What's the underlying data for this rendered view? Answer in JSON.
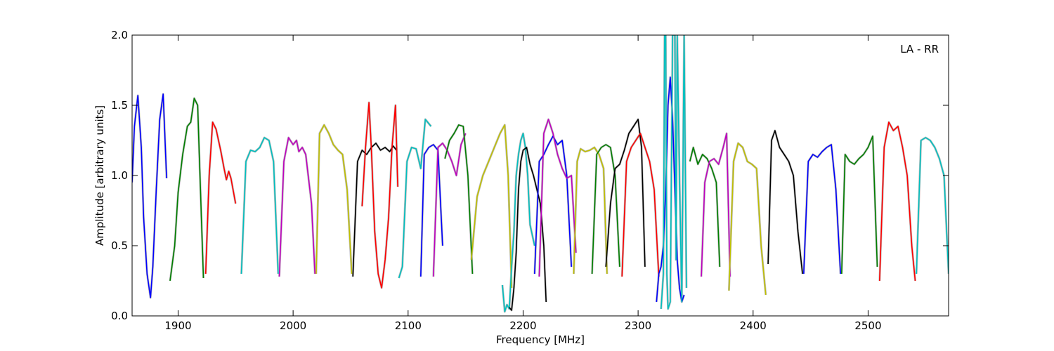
{
  "chart_data": {
    "type": "line",
    "title": "",
    "xlabel": "Frequency [MHz]",
    "ylabel": "Amplitude [arbitrary units]",
    "xlim": [
      1860,
      2570
    ],
    "ylim": [
      0.0,
      2.0
    ],
    "x_ticks": [
      1900,
      2000,
      2100,
      2200,
      2300,
      2400,
      2500
    ],
    "x_tick_labels": [
      "1900",
      "2000",
      "2100",
      "2200",
      "2300",
      "2400",
      "2500"
    ],
    "y_ticks": [
      0.0,
      0.5,
      1.0,
      1.5,
      2.0
    ],
    "y_tick_labels": [
      "0.0",
      "0.5",
      "1.0",
      "1.5",
      "2.0"
    ],
    "grid": false,
    "annotation": "LA - RR",
    "annotation_position": "top-right",
    "background_series_color": "#bfbfbf",
    "series": [
      {
        "color": "#0000ff",
        "x": [
          1860,
          1862,
          1865,
          1868,
          1870,
          1873,
          1876,
          1878,
          1881,
          1884,
          1887,
          1890
        ],
        "y": [
          0.95,
          1.35,
          1.57,
          1.2,
          0.7,
          0.3,
          0.13,
          0.35,
          0.9,
          1.4,
          1.58,
          0.98
        ]
      },
      {
        "color": "#007f00",
        "x": [
          1893,
          1897,
          1900,
          1904,
          1908,
          1911,
          1914,
          1917,
          1919,
          1922
        ],
        "y": [
          0.25,
          0.5,
          0.88,
          1.15,
          1.35,
          1.38,
          1.55,
          1.5,
          1.0,
          0.27
        ]
      },
      {
        "color": "#ff0000",
        "x": [
          1924,
          1927,
          1930,
          1933,
          1937,
          1940,
          1942,
          1944,
          1946,
          1950
        ],
        "y": [
          0.3,
          1.0,
          1.38,
          1.33,
          1.18,
          1.05,
          0.97,
          1.03,
          0.98,
          0.8
        ]
      },
      {
        "color": "#00bfbf",
        "x": [
          1955,
          1959,
          1963,
          1967,
          1971,
          1975,
          1979,
          1983,
          1987
        ],
        "y": [
          0.3,
          1.1,
          1.18,
          1.17,
          1.2,
          1.27,
          1.25,
          1.1,
          0.3
        ]
      },
      {
        "color": "#bf00bf",
        "x": [
          1988,
          1992,
          1996,
          2000,
          2003,
          2005,
          2008,
          2011,
          2016,
          2019
        ],
        "y": [
          0.28,
          1.1,
          1.27,
          1.22,
          1.25,
          1.17,
          1.2,
          1.15,
          0.8,
          0.3
        ]
      },
      {
        "color": "#bfbf00",
        "x": [
          2020,
          2023,
          2027,
          2031,
          2035,
          2039,
          2043,
          2047,
          2051
        ],
        "y": [
          0.3,
          1.3,
          1.36,
          1.3,
          1.22,
          1.18,
          1.15,
          0.9,
          0.3
        ]
      },
      {
        "color": "#000000",
        "x": [
          2052,
          2056,
          2060,
          2064,
          2068,
          2072,
          2076,
          2080,
          2084,
          2087,
          2090
        ],
        "y": [
          0.28,
          1.1,
          1.18,
          1.15,
          1.2,
          1.23,
          1.18,
          1.2,
          1.17,
          1.21,
          1.18
        ]
      },
      {
        "color": "#ff0000",
        "x": [
          2060,
          2063,
          2066,
          2068,
          2071,
          2074,
          2077,
          2080,
          2083,
          2086,
          2089,
          2091
        ],
        "y": [
          0.78,
          1.2,
          1.52,
          1.2,
          0.6,
          0.3,
          0.2,
          0.4,
          0.7,
          1.2,
          1.5,
          0.92
        ]
      },
      {
        "color": "#00bfbf",
        "x": [
          2092,
          2095,
          2099,
          2103,
          2107,
          2111,
          2115,
          2120
        ],
        "y": [
          0.27,
          0.35,
          1.1,
          1.2,
          1.19,
          1.05,
          1.4,
          1.35
        ]
      },
      {
        "color": "#0000ff",
        "x": [
          2111,
          2114,
          2118,
          2122,
          2126,
          2130
        ],
        "y": [
          0.28,
          1.15,
          1.2,
          1.22,
          1.18,
          0.5
        ]
      },
      {
        "color": "#bf00bf",
        "x": [
          2122,
          2126,
          2130,
          2134,
          2138,
          2142,
          2146,
          2150
        ],
        "y": [
          0.28,
          1.2,
          1.23,
          1.18,
          1.1,
          1.0,
          1.22,
          1.3
        ]
      },
      {
        "color": "#007f00",
        "x": [
          2132,
          2136,
          2140,
          2144,
          2148,
          2152,
          2156
        ],
        "y": [
          1.12,
          1.25,
          1.3,
          1.36,
          1.35,
          1.0,
          0.3
        ]
      },
      {
        "color": "#bfbf00",
        "x": [
          2155,
          2160,
          2165,
          2170,
          2175,
          2180,
          2184,
          2187,
          2190
        ],
        "y": [
          0.4,
          0.85,
          1.0,
          1.1,
          1.2,
          1.3,
          1.36,
          1.0,
          0.2
        ]
      },
      {
        "color": "#00bfbf",
        "x": [
          2182,
          2184,
          2186,
          2188,
          2190,
          2192,
          2194,
          2196,
          2198,
          2200,
          2202,
          2204,
          2206,
          2210
        ],
        "y": [
          0.22,
          0.03,
          0.08,
          0.05,
          0.35,
          0.6,
          1.0,
          1.15,
          1.25,
          1.3,
          1.2,
          1.0,
          0.65,
          0.5
        ]
      },
      {
        "color": "#000000",
        "x": [
          2188,
          2190,
          2192,
          2194,
          2196,
          2198,
          2200,
          2203,
          2206,
          2209,
          2212,
          2215,
          2218,
          2220
        ],
        "y": [
          0.06,
          0.04,
          0.2,
          0.45,
          0.9,
          1.1,
          1.18,
          1.2,
          1.08,
          1.0,
          0.9,
          0.8,
          0.5,
          0.1
        ]
      },
      {
        "color": "#0000ff",
        "x": [
          2210,
          2214,
          2218,
          2222,
          2226,
          2230,
          2234,
          2238,
          2242
        ],
        "y": [
          0.3,
          1.1,
          1.15,
          1.22,
          1.28,
          1.22,
          1.25,
          1.0,
          0.35
        ]
      },
      {
        "color": "#bf00bf",
        "x": [
          2214,
          2218,
          2222,
          2226,
          2230,
          2234,
          2238,
          2242,
          2246
        ],
        "y": [
          0.28,
          1.3,
          1.4,
          1.3,
          1.15,
          1.05,
          0.98,
          1.0,
          0.45
        ]
      },
      {
        "color": "#bfbf00",
        "x": [
          2244,
          2247,
          2250,
          2254,
          2258,
          2262,
          2266,
          2270,
          2273
        ],
        "y": [
          0.3,
          1.1,
          1.19,
          1.17,
          1.18,
          1.2,
          1.15,
          1.05,
          0.3
        ]
      },
      {
        "color": "#007f00",
        "x": [
          2260,
          2264,
          2268,
          2272,
          2276,
          2280,
          2284
        ],
        "y": [
          0.3,
          1.15,
          1.2,
          1.22,
          1.2,
          1.0,
          0.35
        ]
      },
      {
        "color": "#000000",
        "x": [
          2272,
          2276,
          2280,
          2284,
          2288,
          2292,
          2296,
          2300,
          2303,
          2306
        ],
        "y": [
          0.35,
          0.8,
          1.05,
          1.08,
          1.18,
          1.3,
          1.35,
          1.4,
          1.2,
          0.35
        ]
      },
      {
        "color": "#ff0000",
        "x": [
          2286,
          2290,
          2294,
          2298,
          2302,
          2306,
          2310,
          2314,
          2318
        ],
        "y": [
          0.28,
          1.1,
          1.2,
          1.25,
          1.3,
          1.2,
          1.1,
          0.9,
          0.28
        ]
      },
      {
        "color": "#0000ff",
        "x": [
          2316,
          2318,
          2320,
          2322,
          2324,
          2326,
          2328,
          2330,
          2332,
          2334,
          2336,
          2338,
          2340
        ],
        "y": [
          0.1,
          0.3,
          0.35,
          0.5,
          0.9,
          1.5,
          1.7,
          1.4,
          0.9,
          0.4,
          0.2,
          0.1,
          0.15
        ]
      },
      {
        "color": "#00bfbf",
        "x": [
          2320,
          2322,
          2323,
          2324,
          2325,
          2326,
          2328,
          2330,
          2332,
          2333,
          2334,
          2336,
          2338,
          2340,
          2342
        ],
        "y": [
          0.05,
          0.3,
          2.0,
          2.0,
          0.3,
          0.05,
          0.1,
          2.0,
          2.0,
          0.4,
          2.0,
          1.0,
          0.1,
          2.0,
          0.2
        ]
      },
      {
        "color": "#007f00",
        "x": [
          2345,
          2348,
          2352,
          2356,
          2360,
          2364,
          2368,
          2371
        ],
        "y": [
          1.1,
          1.2,
          1.08,
          1.15,
          1.12,
          1.05,
          0.95,
          0.35
        ]
      },
      {
        "color": "#bf00bf",
        "x": [
          2355,
          2358,
          2362,
          2366,
          2370,
          2374,
          2377,
          2380
        ],
        "y": [
          0.28,
          0.95,
          1.1,
          1.12,
          1.08,
          1.2,
          1.3,
          0.28
        ]
      },
      {
        "color": "#bfbf00",
        "x": [
          2379,
          2383,
          2387,
          2391,
          2395,
          2399,
          2403,
          2407,
          2411
        ],
        "y": [
          0.18,
          1.1,
          1.23,
          1.2,
          1.1,
          1.08,
          1.05,
          0.5,
          0.15
        ]
      },
      {
        "color": "#000000",
        "x": [
          2413,
          2416,
          2419,
          2423,
          2427,
          2431,
          2435,
          2439,
          2443
        ],
        "y": [
          0.37,
          1.25,
          1.32,
          1.2,
          1.15,
          1.1,
          1.0,
          0.6,
          0.3
        ]
      },
      {
        "color": "#0000ff",
        "x": [
          2444,
          2448,
          2452,
          2456,
          2460,
          2464,
          2468,
          2472,
          2476
        ],
        "y": [
          0.3,
          1.1,
          1.15,
          1.13,
          1.17,
          1.2,
          1.22,
          0.9,
          0.3
        ]
      },
      {
        "color": "#007f00",
        "x": [
          2477,
          2480,
          2484,
          2488,
          2492,
          2496,
          2500,
          2504,
          2508
        ],
        "y": [
          0.3,
          1.15,
          1.1,
          1.08,
          1.12,
          1.15,
          1.2,
          1.28,
          0.35
        ]
      },
      {
        "color": "#ff0000",
        "x": [
          2510,
          2514,
          2518,
          2522,
          2526,
          2530,
          2534,
          2538,
          2541
        ],
        "y": [
          0.25,
          1.2,
          1.38,
          1.32,
          1.35,
          1.2,
          1.0,
          0.5,
          0.25
        ]
      },
      {
        "color": "#00bfbf",
        "x": [
          2542,
          2546,
          2550,
          2554,
          2558,
          2562,
          2566,
          2570
        ],
        "y": [
          0.3,
          1.25,
          1.27,
          1.25,
          1.2,
          1.12,
          1.0,
          0.3
        ]
      }
    ]
  }
}
